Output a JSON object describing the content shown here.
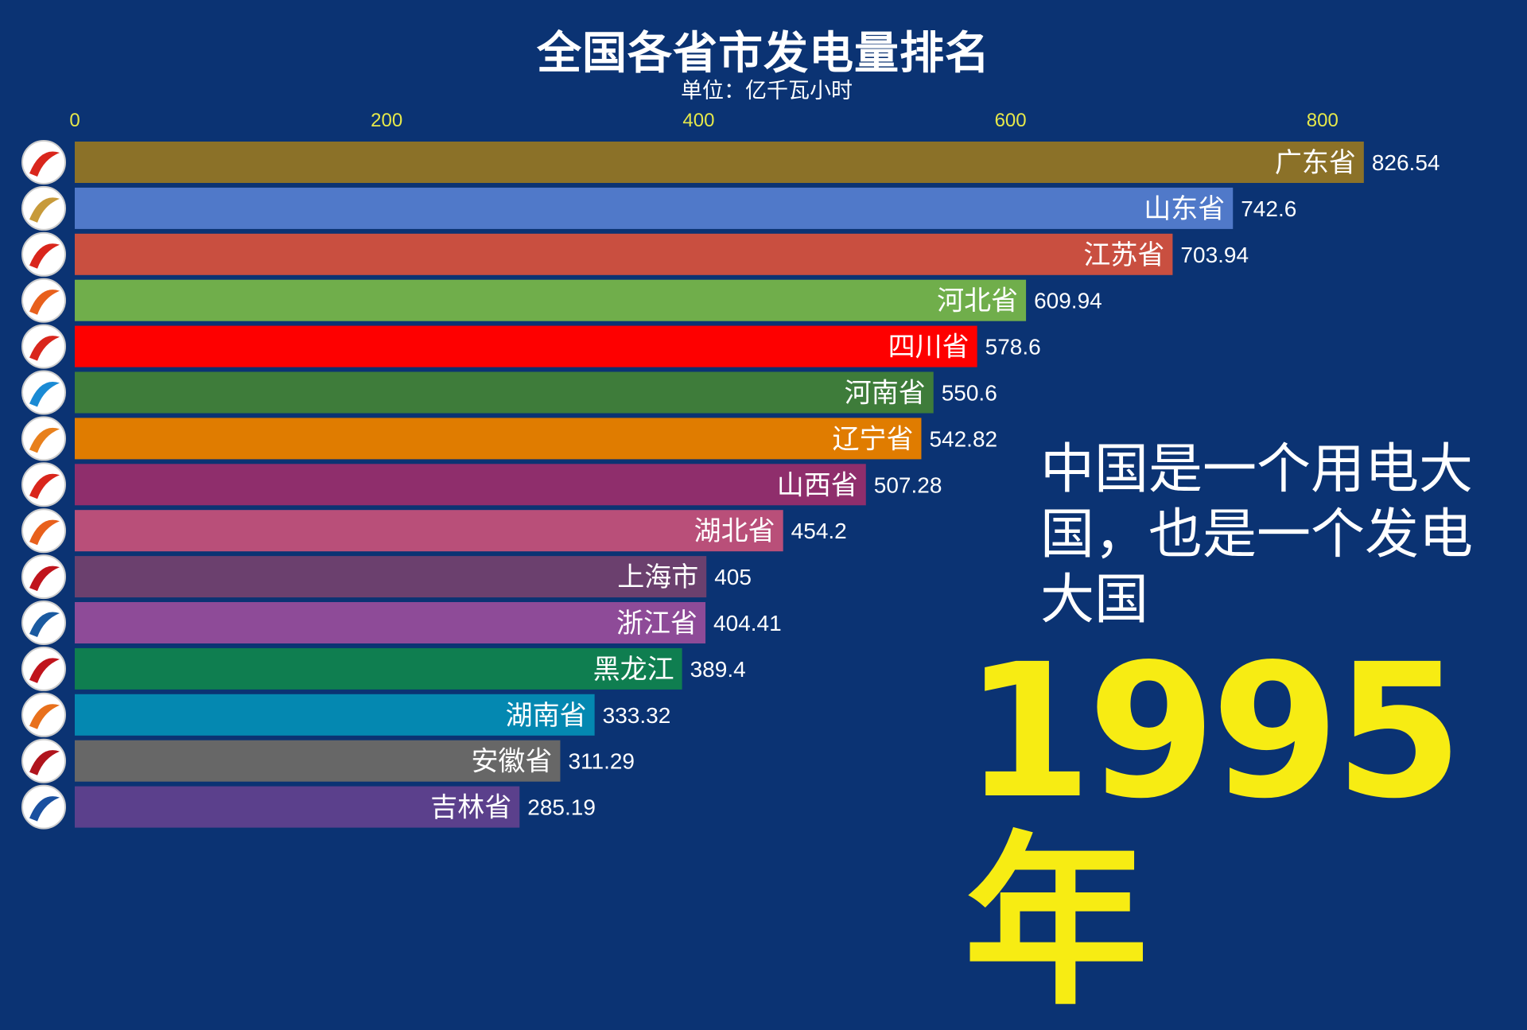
{
  "chart_data": {
    "type": "bar",
    "orientation": "horizontal",
    "title": "全国各省市发电量排名",
    "subtitle": "单位：亿千瓦小时",
    "xlim": [
      0,
      830
    ],
    "ticks": [
      0,
      200,
      400,
      600,
      800
    ],
    "tick_color": "#e6e84a",
    "grid": false,
    "categories": [
      "广东省",
      "山东省",
      "江苏省",
      "河北省",
      "四川省",
      "河南省",
      "辽宁省",
      "山西省",
      "湖北省",
      "上海市",
      "浙江省",
      "黑龙江",
      "湖南省",
      "安徽省",
      "吉林省"
    ],
    "values": [
      826.54,
      742.6,
      703.94,
      609.94,
      578.6,
      550.6,
      542.82,
      507.28,
      454.2,
      405,
      404.41,
      389.4,
      333.32,
      311.29,
      285.19
    ],
    "value_labels": [
      "826.54",
      "742.6",
      "703.94",
      "609.94",
      "578.6",
      "550.6",
      "542.82",
      "507.28",
      "454.2",
      "405",
      "404.41",
      "389.4",
      "333.32",
      "311.29",
      "285.19"
    ],
    "colors": [
      "#8b7128",
      "#5079c9",
      "#c94f40",
      "#70ae4b",
      "#fe0000",
      "#3e7c3a",
      "#e07c00",
      "#8f2e6c",
      "#b94f79",
      "#6b406e",
      "#8e4b98",
      "#0f7e50",
      "#0488b1",
      "#676767",
      "#5b408c"
    ],
    "logo_colors": [
      "#d9261c",
      "#c79a3a",
      "#d9261c",
      "#e8601c",
      "#d9261c",
      "#1a8ad4",
      "#e8801c",
      "#d9261c",
      "#e8601c",
      "#c0141c",
      "#1a5aa0",
      "#c0141c",
      "#e8701c",
      "#b0141c",
      "#1a50a0"
    ]
  },
  "note": "中国是一个用电大国，也是一个发电大国",
  "year": "1995年"
}
